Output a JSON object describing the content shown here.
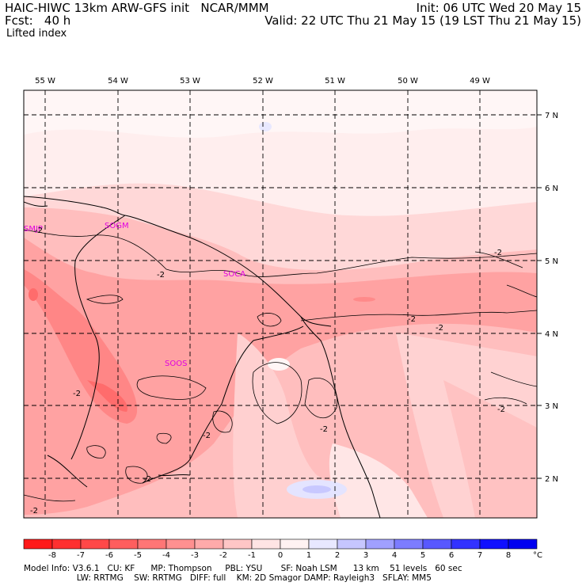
{
  "header": {
    "line1_left": "HAIC-HIWC 13km ARW-GFS init   NCAR/MMM",
    "line2_left": "Fcst:   40 h",
    "line1_right": "Init: 06 UTC Wed 20 May 15",
    "line2_right": "Valid: 22 UTC Thu 21 May 15 (19 LST Thu 21 May 15)",
    "field_name": "Lifted index"
  },
  "map": {
    "lon_labels": [
      "55 W",
      "54 W",
      "53 W",
      "52 W",
      "51 W",
      "50 W",
      "49 W"
    ],
    "lat_labels": [
      "7 N",
      "6 N",
      "5 N",
      "4 N",
      "3 N",
      "2 N"
    ],
    "stations": [
      {
        "id": "SMJP"
      },
      {
        "id": "SOGM"
      },
      {
        "id": "SOCA"
      },
      {
        "id": "SOOS"
      }
    ],
    "contour_labels": [
      "-2",
      "-2",
      "-2",
      "-2",
      "-2",
      "-2",
      "-2",
      "-2",
      "-2",
      "-2",
      "-2"
    ]
  },
  "colorbar": {
    "ticks": [
      "-8",
      "-7",
      "-6",
      "-5",
      "-4",
      "-3",
      "-2",
      "-1",
      "0",
      "1",
      "2",
      "3",
      "4",
      "5",
      "6",
      "7",
      "8"
    ],
    "unit": "°C",
    "colors": [
      "#ff1a1a",
      "#ff3030",
      "#ff4848",
      "#ff5e5e",
      "#ff7676",
      "#ff9090",
      "#ffaaaa",
      "#ffc6c6",
      "#ffe4e4",
      "#fff2f2",
      "#e8e8ff",
      "#c6c6ff",
      "#a0a0ff",
      "#7c7cff",
      "#5858ff",
      "#3232ff",
      "#1010ff",
      "#0000f0"
    ]
  },
  "model_info": {
    "line1": "Model Info: V3.6.1   CU: KF      MP: Thompson     PBL: YSU       SF: Noah LSM      13 km    51 levels   60 sec",
    "line2": "                    LW: RRTMG    SW: RRTMG   DIFF: full    KM: 2D Smagor DAMP: Rayleigh3   SFLAY: MM5"
  }
}
